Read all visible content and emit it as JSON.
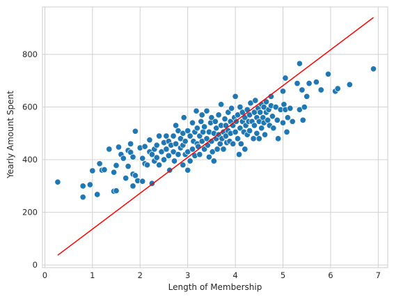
{
  "chart_data": {
    "type": "scatter",
    "title": "",
    "xlabel": "Length of Membership",
    "ylabel": "Yearly Amount Spent",
    "xlim": [
      -0.05,
      7.2
    ],
    "ylim": [
      -10,
      980
    ],
    "x_ticks": [
      0,
      1,
      2,
      3,
      4,
      5,
      6,
      7
    ],
    "y_ticks": [
      0,
      200,
      400,
      600,
      800
    ],
    "x_tick_labels": [
      "0",
      "1",
      "2",
      "3",
      "4",
      "5",
      "6",
      "7"
    ],
    "y_tick_labels": [
      "0",
      "200",
      "400",
      "600",
      "800"
    ],
    "grid": true,
    "legend": "none",
    "series": [
      {
        "kind": "scatter",
        "color": "#1f77b4",
        "points": [
          [
            0.27,
            315
          ],
          [
            0.8,
            258
          ],
          [
            0.8,
            300
          ],
          [
            0.95,
            305
          ],
          [
            1.0,
            358
          ],
          [
            1.1,
            268
          ],
          [
            1.15,
            385
          ],
          [
            1.2,
            360
          ],
          [
            1.25,
            362
          ],
          [
            1.35,
            440
          ],
          [
            1.45,
            352
          ],
          [
            1.45,
            280
          ],
          [
            1.5,
            282
          ],
          [
            1.5,
            378
          ],
          [
            1.55,
            448
          ],
          [
            1.6,
            420
          ],
          [
            1.65,
            405
          ],
          [
            1.7,
            330
          ],
          [
            1.75,
            375
          ],
          [
            1.75,
            435
          ],
          [
            1.8,
            460
          ],
          [
            1.8,
            428
          ],
          [
            1.85,
            410
          ],
          [
            1.85,
            345
          ],
          [
            1.85,
            300
          ],
          [
            1.9,
            508
          ],
          [
            1.9,
            340
          ],
          [
            1.95,
            320
          ],
          [
            2.0,
            445
          ],
          [
            2.05,
            318
          ],
          [
            2.05,
            405
          ],
          [
            2.1,
            385
          ],
          [
            2.1,
            450
          ],
          [
            2.15,
            380
          ],
          [
            2.2,
            475
          ],
          [
            2.2,
            430
          ],
          [
            2.25,
            310
          ],
          [
            2.25,
            420
          ],
          [
            2.3,
            440
          ],
          [
            2.3,
            395
          ],
          [
            2.35,
            455
          ],
          [
            2.35,
            408
          ],
          [
            2.4,
            490
          ],
          [
            2.4,
            380
          ],
          [
            2.45,
            430
          ],
          [
            2.5,
            465
          ],
          [
            2.5,
            400
          ],
          [
            2.55,
            440
          ],
          [
            2.55,
            490
          ],
          [
            2.6,
            470
          ],
          [
            2.6,
            415
          ],
          [
            2.62,
            360
          ],
          [
            2.65,
            455
          ],
          [
            2.7,
            430
          ],
          [
            2.7,
            490
          ],
          [
            2.72,
            395
          ],
          [
            2.75,
            530
          ],
          [
            2.75,
            460
          ],
          [
            2.8,
            510
          ],
          [
            2.8,
            420
          ],
          [
            2.85,
            445
          ],
          [
            2.85,
            480
          ],
          [
            2.9,
            500
          ],
          [
            2.9,
            455
          ],
          [
            2.9,
            380
          ],
          [
            2.92,
            560
          ],
          [
            2.95,
            420
          ],
          [
            2.95,
            470
          ],
          [
            3.0,
            430
          ],
          [
            3.0,
            510
          ],
          [
            3.0,
            360
          ],
          [
            3.05,
            490
          ],
          [
            3.05,
            395
          ],
          [
            3.1,
            440
          ],
          [
            3.1,
            540
          ],
          [
            3.12,
            470
          ],
          [
            3.15,
            505
          ],
          [
            3.15,
            415
          ],
          [
            3.18,
            585
          ],
          [
            3.2,
            460
          ],
          [
            3.2,
            520
          ],
          [
            3.22,
            450
          ],
          [
            3.25,
            490
          ],
          [
            3.25,
            420
          ],
          [
            3.28,
            545
          ],
          [
            3.3,
            570
          ],
          [
            3.3,
            470
          ],
          [
            3.32,
            505
          ],
          [
            3.35,
            440
          ],
          [
            3.35,
            525
          ],
          [
            3.4,
            480
          ],
          [
            3.4,
            585
          ],
          [
            3.42,
            455
          ],
          [
            3.45,
            505
          ],
          [
            3.45,
            410
          ],
          [
            3.48,
            540
          ],
          [
            3.5,
            470
          ],
          [
            3.5,
            560
          ],
          [
            3.52,
            430
          ],
          [
            3.55,
            500
          ],
          [
            3.55,
            395
          ],
          [
            3.58,
            545
          ],
          [
            3.6,
            480
          ],
          [
            3.6,
            520
          ],
          [
            3.62,
            440
          ],
          [
            3.65,
            570
          ],
          [
            3.65,
            495
          ],
          [
            3.68,
            460
          ],
          [
            3.7,
            530
          ],
          [
            3.7,
            610
          ],
          [
            3.72,
            480
          ],
          [
            3.75,
            505
          ],
          [
            3.75,
            440
          ],
          [
            3.78,
            555
          ],
          [
            3.8,
            490
          ],
          [
            3.8,
            530
          ],
          [
            3.82,
            465
          ],
          [
            3.85,
            580
          ],
          [
            3.85,
            510
          ],
          [
            3.88,
            470
          ],
          [
            3.9,
            545
          ],
          [
            3.9,
            500
          ],
          [
            3.92,
            595
          ],
          [
            3.95,
            530
          ],
          [
            3.95,
            460
          ],
          [
            3.98,
            560
          ],
          [
            4.0,
            505
          ],
          [
            4.0,
            640
          ],
          [
            4.02,
            545
          ],
          [
            4.05,
            480
          ],
          [
            4.05,
            570
          ],
          [
            4.08,
            420
          ],
          [
            4.1,
            520
          ],
          [
            4.1,
            600
          ],
          [
            4.12,
            460
          ],
          [
            4.15,
            545
          ],
          [
            4.15,
            580
          ],
          [
            4.18,
            505
          ],
          [
            4.2,
            560
          ],
          [
            4.2,
            440
          ],
          [
            4.22,
            530
          ],
          [
            4.25,
            590
          ],
          [
            4.25,
            495
          ],
          [
            4.28,
            545
          ],
          [
            4.3,
            570
          ],
          [
            4.3,
            510
          ],
          [
            4.32,
            615
          ],
          [
            4.35,
            545
          ],
          [
            4.38,
            480
          ],
          [
            4.4,
            580
          ],
          [
            4.4,
            530
          ],
          [
            4.42,
            625
          ],
          [
            4.45,
            560
          ],
          [
            4.45,
            500
          ],
          [
            4.48,
            595
          ],
          [
            4.5,
            545
          ],
          [
            4.5,
            480
          ],
          [
            4.52,
            580
          ],
          [
            4.55,
            520
          ],
          [
            4.55,
            610
          ],
          [
            4.58,
            560
          ],
          [
            4.6,
            540
          ],
          [
            4.6,
            600
          ],
          [
            4.62,
            495
          ],
          [
            4.65,
            580
          ],
          [
            4.65,
            620
          ],
          [
            4.68,
            550
          ],
          [
            4.7,
            590
          ],
          [
            4.72,
            530
          ],
          [
            4.75,
            605
          ],
          [
            4.75,
            640
          ],
          [
            4.78,
            565
          ],
          [
            4.8,
            520
          ],
          [
            4.85,
            600
          ],
          [
            4.88,
            550
          ],
          [
            4.9,
            480
          ],
          [
            4.95,
            590
          ],
          [
            5.0,
            660
          ],
          [
            5.0,
            540
          ],
          [
            5.02,
            610
          ],
          [
            5.05,
            710
          ],
          [
            5.05,
            590
          ],
          [
            5.08,
            505
          ],
          [
            5.1,
            560
          ],
          [
            5.15,
            595
          ],
          [
            5.2,
            545
          ],
          [
            5.3,
            690
          ],
          [
            5.35,
            765
          ],
          [
            5.35,
            590
          ],
          [
            5.4,
            665
          ],
          [
            5.42,
            550
          ],
          [
            5.45,
            600
          ],
          [
            5.5,
            640
          ],
          [
            5.55,
            690
          ],
          [
            5.7,
            695
          ],
          [
            5.8,
            665
          ],
          [
            5.95,
            725
          ],
          [
            6.1,
            660
          ],
          [
            6.15,
            670
          ],
          [
            6.4,
            685
          ],
          [
            6.9,
            745
          ]
        ]
      },
      {
        "kind": "line",
        "color": "#ff0000",
        "points": [
          [
            0.27,
            37
          ],
          [
            6.9,
            940
          ]
        ]
      }
    ]
  }
}
